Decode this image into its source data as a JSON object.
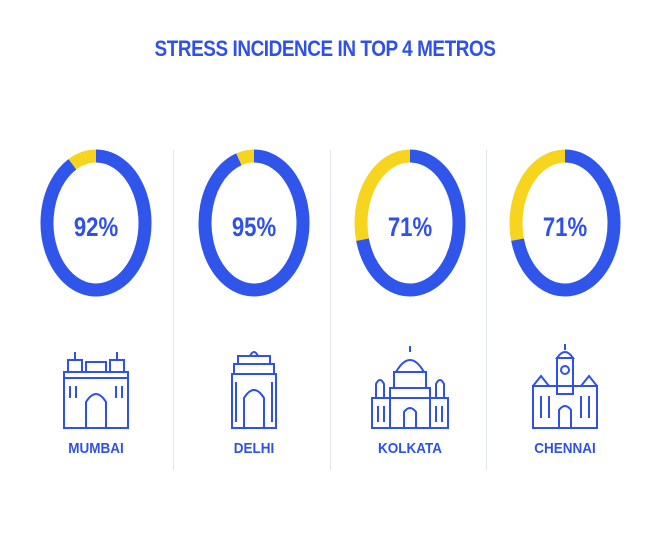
{
  "chart_data": {
    "type": "donut",
    "title": "STRESS INCIDENCE IN TOP 4 METROS",
    "categories": [
      "MUMBAI",
      "DELHI",
      "KOLKATA",
      "CHENNAI"
    ],
    "values": [
      92,
      95,
      71,
      71
    ],
    "labels": [
      "92%",
      "95%",
      "71%",
      "71%"
    ],
    "unit": "%",
    "colors": {
      "value": "#2f55ea",
      "remainder": "#f7d51f",
      "text": "#2f50ea"
    },
    "icons": [
      "gateway-of-india-icon",
      "india-gate-icon",
      "victoria-memorial-icon",
      "chennai-central-icon"
    ]
  }
}
